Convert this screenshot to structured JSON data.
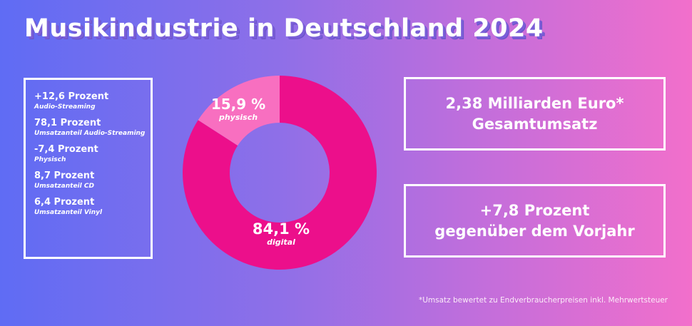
{
  "title": "Musikindustrie in Deutschland 2024",
  "stats": [
    {
      "value": "+12,6 Prozent",
      "label": "Audio-Streaming"
    },
    {
      "value": "78,1 Prozent",
      "label": "Umsatzanteil Audio-Streaming"
    },
    {
      "value": "-7,4 Prozent",
      "label": "Physisch"
    },
    {
      "value": "8,7 Prozent",
      "label": "Umsatzanteil CD"
    },
    {
      "value": "6,4 Prozent",
      "label": "Umsatzanteil Vinyl"
    }
  ],
  "chart_data": {
    "type": "pie",
    "variant": "donut",
    "title": "",
    "slices": [
      {
        "label": "physisch",
        "value": 15.9,
        "display": "15,9 %",
        "color": "#f86fc0"
      },
      {
        "label": "digital",
        "value": 84.1,
        "display": "84,1 %",
        "color": "#ec0f8b"
      }
    ]
  },
  "panels": {
    "total": {
      "line1": "2,38 Milliarden Euro*",
      "line2": "Gesamtumsatz"
    },
    "change": {
      "line1": "+7,8 Prozent",
      "line2": "gegenüber dem Vorjahr"
    }
  },
  "footnote": "*Umsatz bewertet zu Endverbraucherpreisen inkl. Mehrwertsteuer",
  "colors": {
    "gradient_left": "#5f6cf4",
    "gradient_right": "#f26fcb",
    "digital": "#ec0f8b",
    "physisch": "#f86fc0"
  }
}
